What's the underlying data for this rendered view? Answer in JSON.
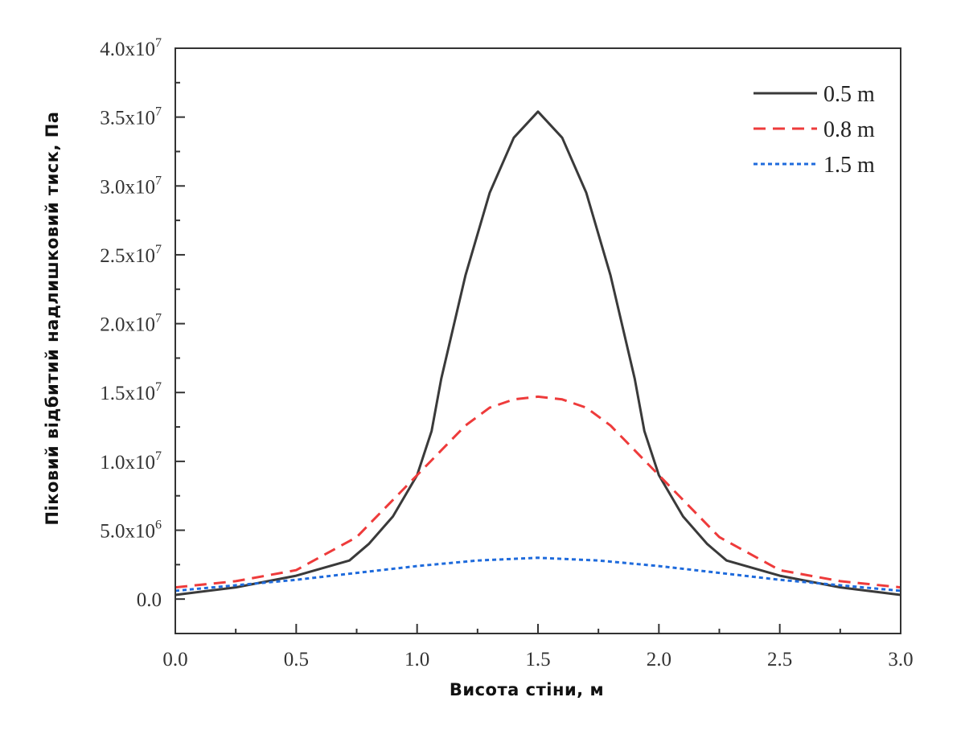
{
  "chart_data": {
    "type": "line",
    "xlabel": "Висота стіни, м",
    "ylabel": "Піковий відбитий надлишковий тиск, Па",
    "xlim": [
      0,
      3
    ],
    "ylim": [
      -2500000,
      40000000
    ],
    "x_ticks": [
      {
        "value": 0.0,
        "label": "0.0"
      },
      {
        "value": 0.5,
        "label": "0.5"
      },
      {
        "value": 1.0,
        "label": "1.0"
      },
      {
        "value": 1.5,
        "label": "1.5"
      },
      {
        "value": 2.0,
        "label": "2.0"
      },
      {
        "value": 2.5,
        "label": "2.5"
      },
      {
        "value": 3.0,
        "label": "3.0"
      }
    ],
    "y_ticks": [
      {
        "value": 0,
        "base": "0.0",
        "exp": ""
      },
      {
        "value": 5000000,
        "base": "5.0x10",
        "exp": "6"
      },
      {
        "value": 10000000,
        "base": "1.0x10",
        "exp": "7"
      },
      {
        "value": 15000000,
        "base": "1.5x10",
        "exp": "7"
      },
      {
        "value": 20000000,
        "base": "2.0x10",
        "exp": "7"
      },
      {
        "value": 25000000,
        "base": "2.5x10",
        "exp": "7"
      },
      {
        "value": 30000000,
        "base": "3.0x10",
        "exp": "7"
      },
      {
        "value": 35000000,
        "base": "3.5x10",
        "exp": "7"
      },
      {
        "value": 40000000,
        "base": "4.0x10",
        "exp": "7"
      }
    ],
    "legend_position": "top-right",
    "grid": false,
    "series": [
      {
        "name": "0.5 m",
        "color": "#3a3a3a",
        "style": "solid",
        "points": [
          [
            0.0,
            300000
          ],
          [
            0.25,
            850000
          ],
          [
            0.5,
            1700000
          ],
          [
            0.72,
            2800000
          ],
          [
            0.8,
            4000000
          ],
          [
            0.9,
            6000000
          ],
          [
            1.0,
            9000000
          ],
          [
            1.06,
            12200000
          ],
          [
            1.1,
            16000000
          ],
          [
            1.2,
            23500000
          ],
          [
            1.3,
            29500000
          ],
          [
            1.4,
            33500000
          ],
          [
            1.5,
            35400000
          ],
          [
            1.6,
            33500000
          ],
          [
            1.7,
            29500000
          ],
          [
            1.8,
            23500000
          ],
          [
            1.9,
            16000000
          ],
          [
            1.94,
            12200000
          ],
          [
            2.0,
            9000000
          ],
          [
            2.1,
            6000000
          ],
          [
            2.2,
            4000000
          ],
          [
            2.28,
            2800000
          ],
          [
            2.5,
            1700000
          ],
          [
            2.75,
            850000
          ],
          [
            3.0,
            300000
          ]
        ]
      },
      {
        "name": "0.8 m",
        "color": "#ee3b3b",
        "style": "dashed",
        "points": [
          [
            0.0,
            850000
          ],
          [
            0.25,
            1300000
          ],
          [
            0.5,
            2100000
          ],
          [
            0.75,
            4500000
          ],
          [
            1.0,
            9000000
          ],
          [
            1.1,
            10800000
          ],
          [
            1.2,
            12600000
          ],
          [
            1.3,
            13900000
          ],
          [
            1.4,
            14500000
          ],
          [
            1.5,
            14700000
          ],
          [
            1.6,
            14500000
          ],
          [
            1.7,
            13900000
          ],
          [
            1.8,
            12600000
          ],
          [
            1.9,
            10800000
          ],
          [
            2.0,
            9000000
          ],
          [
            2.25,
            4500000
          ],
          [
            2.5,
            2100000
          ],
          [
            2.75,
            1300000
          ],
          [
            3.0,
            850000
          ]
        ]
      },
      {
        "name": "1.5 m",
        "color": "#1f6bdc",
        "style": "dotted",
        "points": [
          [
            0.0,
            600000
          ],
          [
            0.25,
            1000000
          ],
          [
            0.5,
            1400000
          ],
          [
            0.75,
            1900000
          ],
          [
            1.0,
            2400000
          ],
          [
            1.25,
            2800000
          ],
          [
            1.5,
            3000000
          ],
          [
            1.75,
            2800000
          ],
          [
            2.0,
            2400000
          ],
          [
            2.25,
            1900000
          ],
          [
            2.5,
            1400000
          ],
          [
            2.75,
            1000000
          ],
          [
            3.0,
            600000
          ]
        ]
      }
    ]
  }
}
